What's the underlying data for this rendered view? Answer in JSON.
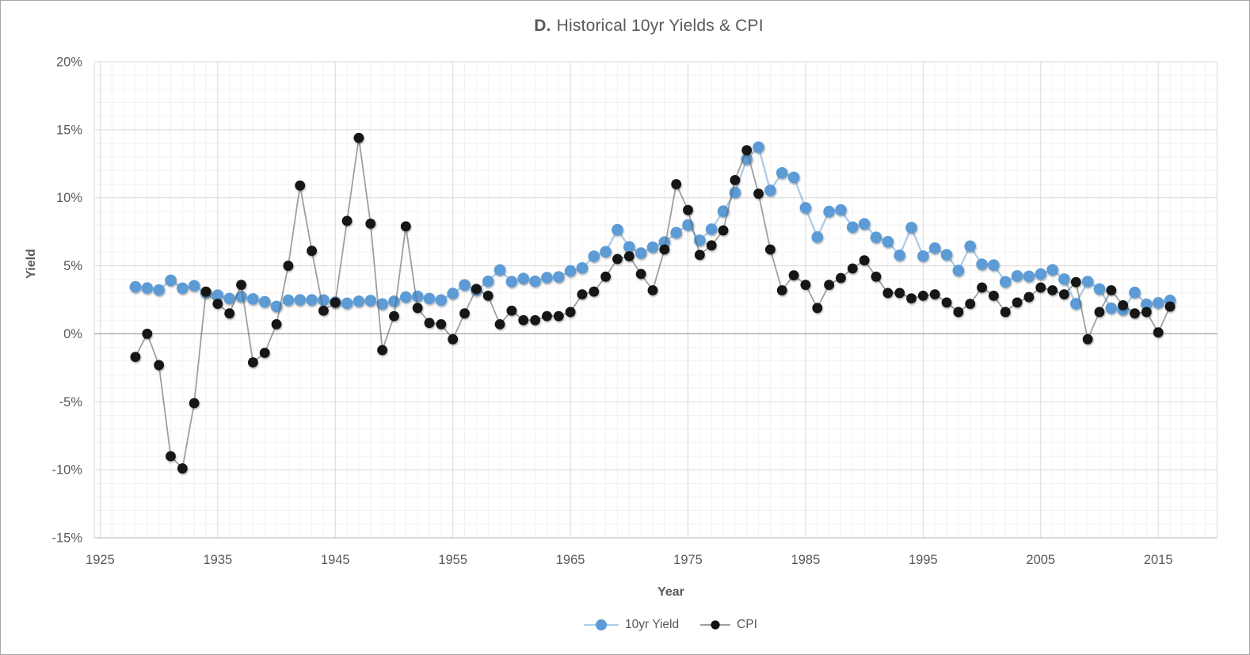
{
  "chart": {
    "title_prefix": "D.",
    "title_rest": "Historical 10yr Yields & CPI",
    "x_axis_title": "Year",
    "y_axis_title": "Yield"
  },
  "chart_data": {
    "type": "line",
    "title": "D. Historical 10yr Yields & CPI",
    "xlabel": "Year",
    "ylabel": "Yield",
    "legend_position": "bottom",
    "grid": "major+minor",
    "ylim": [
      -15,
      20
    ],
    "xlim": [
      1924.5,
      2020
    ],
    "y_ticks": [
      20,
      15,
      10,
      5,
      0,
      -5,
      -10,
      -15
    ],
    "y_tick_suffix": "%",
    "x_ticks": [
      1925,
      1935,
      1945,
      1955,
      1965,
      1975,
      1985,
      1995,
      2005,
      2015
    ],
    "x": [
      1928,
      1929,
      1930,
      1931,
      1932,
      1933,
      1934,
      1935,
      1936,
      1937,
      1938,
      1939,
      1940,
      1941,
      1942,
      1943,
      1944,
      1945,
      1946,
      1947,
      1948,
      1949,
      1950,
      1951,
      1952,
      1953,
      1954,
      1955,
      1956,
      1957,
      1958,
      1959,
      1960,
      1961,
      1962,
      1963,
      1964,
      1965,
      1966,
      1967,
      1968,
      1969,
      1970,
      1971,
      1972,
      1973,
      1974,
      1975,
      1976,
      1977,
      1978,
      1979,
      1980,
      1981,
      1982,
      1983,
      1984,
      1985,
      1986,
      1987,
      1988,
      1989,
      1990,
      1991,
      1992,
      1993,
      1994,
      1995,
      1996,
      1997,
      1998,
      1999,
      2000,
      2001,
      2002,
      2003,
      2004,
      2005,
      2006,
      2007,
      2008,
      2009,
      2010,
      2011,
      2012,
      2013,
      2014,
      2015,
      2016
    ],
    "series": [
      {
        "name": "10yr Yield",
        "marker_color": "#5b9bd5",
        "line_color": "rgba(91,155,213,0.5)",
        "marker_radius": 7.3,
        "line_width": 2.4,
        "values": [
          3.45,
          3.36,
          3.22,
          3.93,
          3.35,
          3.53,
          3.01,
          2.84,
          2.59,
          2.73,
          2.56,
          2.35,
          2.01,
          2.47,
          2.49,
          2.49,
          2.48,
          2.33,
          2.24,
          2.39,
          2.44,
          2.19,
          2.39,
          2.7,
          2.75,
          2.59,
          2.48,
          2.96,
          3.59,
          3.21,
          3.86,
          4.69,
          3.84,
          4.06,
          3.86,
          4.13,
          4.18,
          4.62,
          4.84,
          5.7,
          6.03,
          7.65,
          6.39,
          5.93,
          6.36,
          6.74,
          7.43,
          8.0,
          6.87,
          7.69,
          9.01,
          10.39,
          12.84,
          13.72,
          10.54,
          11.83,
          11.5,
          9.26,
          7.11,
          8.99,
          9.11,
          7.84,
          8.08,
          7.09,
          6.77,
          5.77,
          7.81,
          5.71,
          6.3,
          5.81,
          4.65,
          6.44,
          5.11,
          5.05,
          3.82,
          4.25,
          4.22,
          4.39,
          4.7,
          4.02,
          2.21,
          3.84,
          3.29,
          1.88,
          1.76,
          3.04,
          2.17,
          2.27,
          2.45
        ]
      },
      {
        "name": "CPI",
        "marker_color": "#121212",
        "line_color": "rgba(100,100,100,0.62)",
        "marker_radius": 6.4,
        "line_width": 1.8,
        "values": [
          -1.7,
          0.0,
          -2.3,
          -9.0,
          -9.9,
          -5.1,
          3.1,
          2.2,
          1.5,
          3.6,
          -2.1,
          -1.4,
          0.7,
          5.0,
          10.9,
          6.1,
          1.7,
          2.3,
          8.3,
          14.4,
          8.1,
          -1.2,
          1.3,
          7.9,
          1.9,
          0.8,
          0.7,
          -0.4,
          1.5,
          3.3,
          2.8,
          0.7,
          1.7,
          1.0,
          1.0,
          1.3,
          1.3,
          1.6,
          2.9,
          3.1,
          4.2,
          5.5,
          5.7,
          4.4,
          3.2,
          6.2,
          11.0,
          9.1,
          5.8,
          6.5,
          7.6,
          11.3,
          13.5,
          10.3,
          6.2,
          3.2,
          4.3,
          3.6,
          1.9,
          3.6,
          4.1,
          4.8,
          5.4,
          4.2,
          3.0,
          3.0,
          2.6,
          2.8,
          2.9,
          2.3,
          1.6,
          2.2,
          3.4,
          2.8,
          1.6,
          2.3,
          2.7,
          3.4,
          3.2,
          2.9,
          3.8,
          -0.4,
          1.6,
          3.2,
          2.1,
          1.5,
          1.6,
          0.1,
          2.0
        ]
      }
    ]
  }
}
